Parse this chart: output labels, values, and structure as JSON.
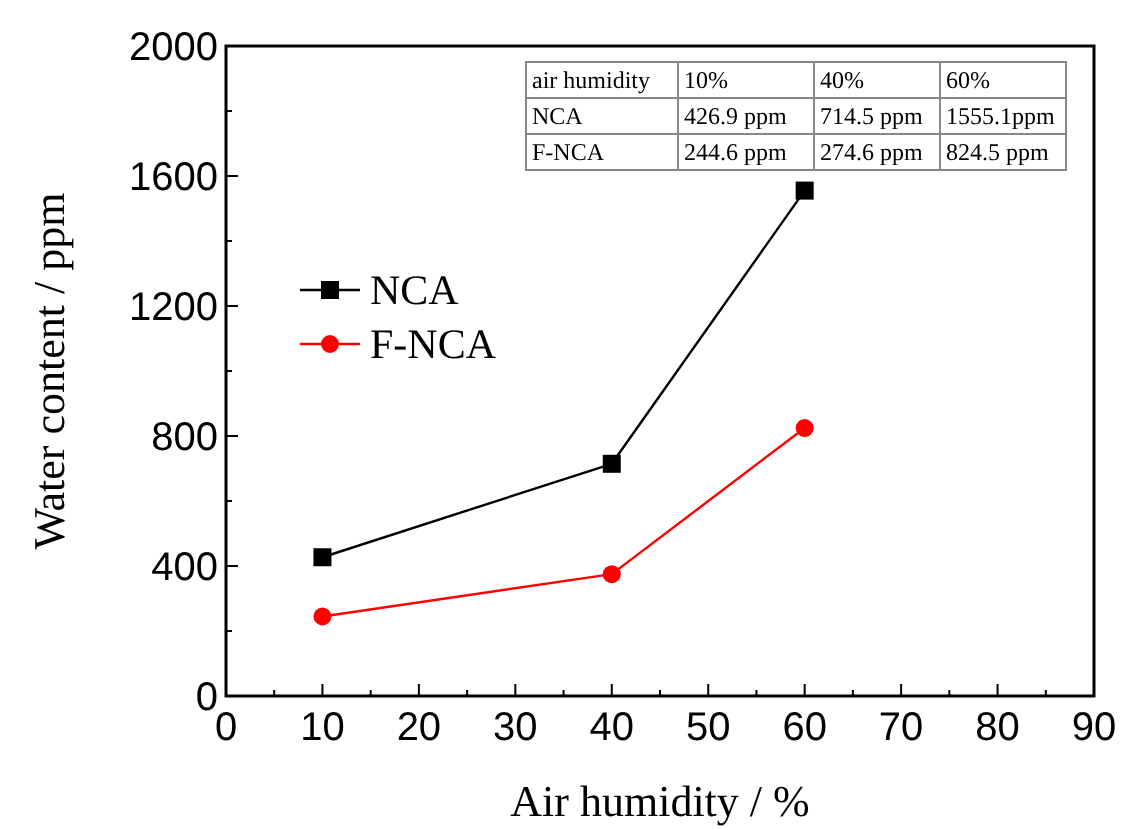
{
  "chart_data": {
    "type": "line",
    "xlabel": "Air humidity / %",
    "ylabel": "Water content / ppm",
    "x": [
      10,
      40,
      60
    ],
    "series": [
      {
        "name": "NCA",
        "color": "#000000",
        "marker": "square",
        "values": [
          426.9,
          714.5,
          1555.1
        ]
      },
      {
        "name": "F-NCA",
        "color": "#ff0000",
        "marker": "circle",
        "values": [
          244.6,
          375,
          824.5
        ]
      }
    ],
    "xlim": [
      0,
      90
    ],
    "xticks": [
      0,
      10,
      20,
      30,
      40,
      50,
      60,
      70,
      80,
      90
    ],
    "ylim": [
      0,
      2000
    ],
    "yticks": [
      0,
      400,
      800,
      1200,
      1600,
      2000
    ],
    "legend": "left",
    "grid": false,
    "line_style": "solid",
    "annotations": [
      "air humidity",
      "10%",
      "40%",
      "60%",
      "NCA",
      "426.9 ppm",
      "714.5 ppm",
      "1555.1ppm",
      "F-NCA",
      "244.6 ppm",
      "274.6 ppm",
      "824.5 ppm"
    ]
  }
}
